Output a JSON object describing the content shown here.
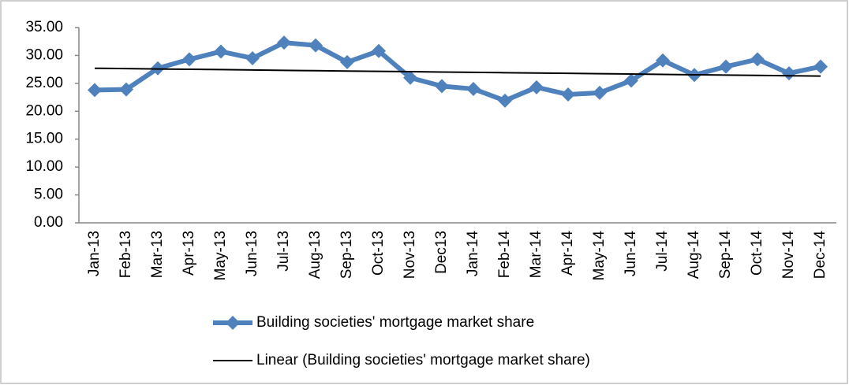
{
  "chart_data": {
    "type": "line",
    "categories": [
      "Jan-13",
      "Feb-13",
      "Mar-13",
      "Apr-13",
      "May-13",
      "Jun-13",
      "Jul-13",
      "Aug-13",
      "Sep-13",
      "Oct-13",
      "Nov-13",
      "Dec13",
      "Jan-14",
      "Feb-14",
      "Mar-14",
      "Apr-14",
      "May-14",
      "Jun-14",
      "Jul-14",
      "Aug-14",
      "Sep-14",
      "Oct-14",
      "Nov-14",
      "Dec-14"
    ],
    "series": [
      {
        "name": "Building societies' mortgage market share",
        "color": "#4f81bd",
        "marker": "diamond",
        "values": [
          23.8,
          23.9,
          27.7,
          29.3,
          30.7,
          29.5,
          32.3,
          31.8,
          28.8,
          30.8,
          26.0,
          24.5,
          24.0,
          21.9,
          24.3,
          23.0,
          23.3,
          25.5,
          29.1,
          26.5,
          28.0,
          29.3,
          26.8,
          28.0
        ]
      },
      {
        "name": "Linear (Building societies' mortgage market share)",
        "color": "#000000",
        "values": [
          27.7,
          27.64,
          27.58,
          27.52,
          27.46,
          27.4,
          27.33,
          27.27,
          27.21,
          27.15,
          27.09,
          27.03,
          26.97,
          26.91,
          26.85,
          26.79,
          26.73,
          26.67,
          26.6,
          26.54,
          26.48,
          26.42,
          26.36,
          26.3
        ]
      }
    ],
    "ylim": [
      0,
      35
    ],
    "yticks": [
      {
        "value": 0,
        "label": "0.00"
      },
      {
        "value": 5,
        "label": "5.00"
      },
      {
        "value": 10,
        "label": "10.00"
      },
      {
        "value": 15,
        "label": "15.00"
      },
      {
        "value": 20,
        "label": "20.00"
      },
      {
        "value": 25,
        "label": "25.00"
      },
      {
        "value": 30,
        "label": "30.00"
      },
      {
        "value": 35,
        "label": "35.00"
      }
    ],
    "grid": false,
    "legend": "bottom"
  }
}
